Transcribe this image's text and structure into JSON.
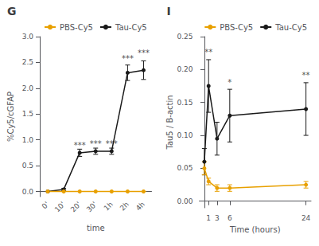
{
  "chart_data": [
    {
      "type": "line",
      "title": "G",
      "categories": [
        "0'",
        "10'",
        "20'",
        "30'",
        "1h",
        "2h",
        "4h"
      ],
      "xlabel": "time",
      "ylabel": "%Cy5/cGFAP",
      "ylim": [
        -0.1,
        3.0
      ],
      "yticks": [
        {
          "value": 0,
          "label": "0.0"
        },
        0.5,
        {
          "value": 1,
          "label": "1.0"
        },
        1.5,
        {
          "value": 2,
          "label": "2.0"
        },
        2.5,
        {
          "value": 3,
          "label": "3.0"
        }
      ],
      "grid": false,
      "legend": "upper left",
      "series": [
        {
          "name": "Tau-Cy5",
          "color": "#1a1a1a",
          "marker": "circle",
          "values": [
            0.0,
            0.04,
            0.75,
            0.78,
            0.78,
            2.3,
            2.35
          ],
          "errors": [
            0.0,
            0.02,
            0.07,
            0.06,
            0.06,
            0.15,
            0.18
          ]
        },
        {
          "name": "PBS-Cy5",
          "color": "#e8a000",
          "marker": "circle",
          "values": [
            0.0,
            0.0,
            0.0,
            0.0,
            0.0,
            0.0,
            0.0
          ],
          "errors": [
            0.0,
            0.0,
            0.0,
            0.0,
            0.0,
            0.0,
            0.0
          ]
        }
      ],
      "annotations": [
        {
          "text": "***",
          "x": "20'",
          "y": 0.82
        },
        {
          "text": "***",
          "x": "30'",
          "y": 0.85
        },
        {
          "text": "***",
          "x": "1h",
          "y": 0.85
        },
        {
          "text": "***",
          "x": "2h",
          "y": 2.5
        },
        {
          "text": "***",
          "x": "4h",
          "y": 2.6
        }
      ]
    },
    {
      "type": "line",
      "title": "I",
      "x": [
        0,
        1,
        3,
        6,
        24
      ],
      "xlabel": "Time (hours)",
      "ylabel": "Tau5 / B-actin",
      "xlim": [
        -1.2,
        25.2
      ],
      "xticks": [
        0,
        1,
        3,
        6,
        24
      ],
      "ylim": [
        -0.01,
        0.25
      ],
      "yticks": [
        {
          "value": 0,
          "label": "0.00"
        },
        0.05,
        {
          "value": 0.1,
          "label": "0.10"
        },
        0.15,
        {
          "value": 0.2,
          "label": "0.20"
        },
        0.25
      ],
      "grid": false,
      "legend": "upper right",
      "series": [
        {
          "name": "Tau-Cy5",
          "color": "#1a1a1a",
          "marker": "circle",
          "values": [
            0.06,
            0.175,
            0.095,
            0.13,
            0.14
          ],
          "errors": [
            0.02,
            0.04,
            0.025,
            0.04,
            0.04
          ]
        },
        {
          "name": "PBS-Cy5",
          "color": "#e8a000",
          "marker": "circle",
          "values": [
            0.05,
            0.03,
            0.02,
            0.02,
            0.025
          ],
          "errors": [
            0.01,
            0.005,
            0.005,
            0.005,
            0.005
          ]
        }
      ],
      "annotations": [
        {
          "text": "**",
          "x": 1,
          "y": 0.22
        },
        {
          "text": "*",
          "x": 6,
          "y": 0.175
        },
        {
          "text": "**",
          "x": 24,
          "y": 0.185
        }
      ]
    }
  ]
}
